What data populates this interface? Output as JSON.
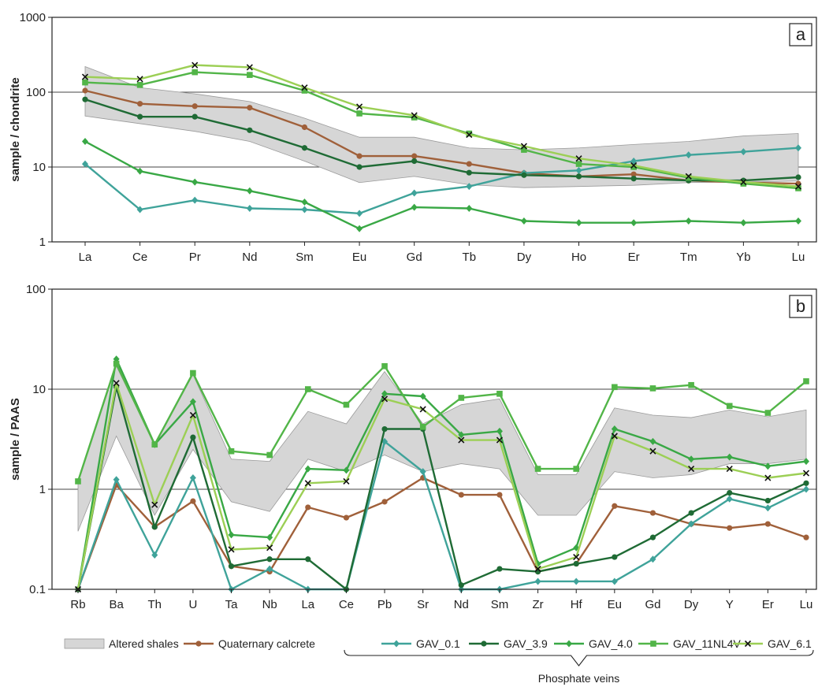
{
  "chart_data": [
    {
      "panel": "a",
      "type": "line",
      "ylabel": "sample / chondrite",
      "yscale": "log",
      "ylim": [
        1,
        1000
      ],
      "yticks": [
        "1",
        "10",
        "100",
        "1000"
      ],
      "grid": "horizontal at 10 and 100",
      "categories": [
        "La",
        "Ce",
        "Pr",
        "Nd",
        "Sm",
        "Eu",
        "Gd",
        "Tb",
        "Dy",
        "Ho",
        "Er",
        "Tm",
        "Yb",
        "Lu"
      ],
      "band": {
        "name": "Altered shales",
        "upper": [
          220,
          115,
          95,
          75,
          45,
          25,
          25,
          18,
          17,
          18,
          20,
          22,
          26,
          28
        ],
        "lower": [
          48,
          38,
          30,
          22,
          12,
          6.2,
          7.5,
          5.8,
          5.3,
          5.5,
          5.7,
          6.2,
          6.3,
          6.5
        ]
      },
      "series": [
        {
          "name": "Quaternary calcrete",
          "values": [
            105,
            70,
            65,
            62,
            34,
            14,
            14,
            11,
            8.3,
            7.5,
            8.0,
            6.6,
            6.2,
            6.0
          ]
        },
        {
          "name": "GAV_0.1",
          "values": [
            11,
            2.7,
            3.6,
            2.8,
            2.7,
            2.4,
            4.5,
            5.5,
            8.3,
            9,
            12,
            14.5,
            16,
            18
          ]
        },
        {
          "name": "GAV_3.9",
          "values": [
            80,
            47,
            47,
            31,
            18,
            10,
            12,
            8.4,
            7.8,
            7.5,
            7.0,
            6.6,
            6.6,
            7.3
          ]
        },
        {
          "name": "GAV_4.0",
          "values": [
            22,
            8.8,
            6.3,
            4.8,
            3.4,
            1.5,
            2.9,
            2.8,
            1.9,
            1.8,
            1.8,
            1.9,
            1.8,
            1.9
          ]
        },
        {
          "name": "GAV_11NL4V",
          "values": [
            135,
            125,
            185,
            170,
            105,
            52,
            46,
            28,
            17,
            11,
            10,
            7.2,
            6.0,
            5.2
          ]
        },
        {
          "name": "GAV_6.1",
          "values": [
            160,
            150,
            230,
            215,
            115,
            64,
            49,
            27,
            19,
            13,
            10.5,
            7.5,
            6.3,
            5.5
          ]
        }
      ]
    },
    {
      "panel": "b",
      "type": "line",
      "ylabel": "sample / PAAS",
      "yscale": "log",
      "ylim": [
        0.1,
        100
      ],
      "yticks": [
        "0.1",
        "1",
        "10",
        "100"
      ],
      "grid": "horizontal at 1 and 10",
      "categories": [
        "Rb",
        "Ba",
        "Th",
        "U",
        "Ta",
        "Nb",
        "La",
        "Ce",
        "Pb",
        "Sr",
        "Nd",
        "Sm",
        "Zr",
        "Hf",
        "Eu",
        "Gd",
        "Dy",
        "Y",
        "Er",
        "Lu"
      ],
      "band": {
        "name": "Altered shales",
        "upper": [
          1.2,
          17,
          2.8,
          14,
          2.0,
          1.9,
          6.0,
          4.5,
          15,
          4.5,
          7.0,
          8.0,
          1.4,
          1.4,
          6.5,
          5.5,
          5.2,
          6.2,
          5.3,
          6.2
        ],
        "lower": [
          0.38,
          3.4,
          0.55,
          2.5,
          0.75,
          0.6,
          2.0,
          1.5,
          2.2,
          1.5,
          1.8,
          1.6,
          0.55,
          0.55,
          1.5,
          1.3,
          1.4,
          1.8,
          1.8,
          2.0
        ]
      },
      "series": [
        {
          "name": "Quaternary calcrete",
          "values": [
            0.1,
            1.1,
            0.42,
            0.76,
            0.17,
            0.15,
            0.66,
            0.52,
            0.75,
            1.3,
            0.88,
            0.88,
            0.15,
            0.18,
            0.68,
            0.58,
            0.45,
            0.41,
            0.45,
            0.33
          ]
        },
        {
          "name": "GAV_0.1",
          "values": [
            0.1,
            1.25,
            0.22,
            1.3,
            0.1,
            0.16,
            0.1,
            0.1,
            3.0,
            1.5,
            0.1,
            0.1,
            0.12,
            0.12,
            0.12,
            0.2,
            0.45,
            0.8,
            0.65,
            1.0
          ]
        },
        {
          "name": "GAV_3.9",
          "values": [
            0.1,
            10.5,
            0.42,
            3.3,
            0.17,
            0.2,
            0.2,
            0.1,
            4.0,
            4.0,
            0.11,
            0.16,
            0.15,
            0.18,
            0.21,
            0.33,
            0.58,
            0.92,
            0.77,
            1.15
          ]
        },
        {
          "name": "GAV_4.0",
          "values": [
            0.1,
            20,
            2.8,
            7.5,
            0.35,
            0.33,
            1.6,
            1.55,
            9.0,
            8.5,
            3.5,
            3.8,
            0.18,
            0.26,
            4.0,
            3.0,
            2.0,
            2.1,
            1.7,
            1.9
          ]
        },
        {
          "name": "GAV_11NL4V",
          "values": [
            1.2,
            18,
            2.8,
            14.5,
            2.4,
            2.2,
            10,
            7.0,
            17,
            4.2,
            8.2,
            9.0,
            1.6,
            1.6,
            10.5,
            10.2,
            11,
            6.8,
            5.8,
            12
          ]
        },
        {
          "name": "GAV_6.1",
          "values": [
            0.1,
            11.5,
            0.7,
            5.5,
            0.25,
            0.26,
            1.15,
            1.2,
            8.0,
            6.3,
            3.1,
            3.1,
            0.16,
            0.21,
            3.4,
            2.4,
            1.6,
            1.6,
            1.3,
            1.45
          ]
        }
      ]
    }
  ],
  "legend": {
    "items": [
      {
        "label": "Altered shales",
        "kind": "band",
        "color": "#d6d6d6"
      },
      {
        "label": "Quaternary calcrete",
        "kind": "line",
        "marker": "circle",
        "color": "#a0603a"
      },
      {
        "label": "GAV_0.1",
        "kind": "line",
        "marker": "diamond",
        "color": "#3fa39a"
      },
      {
        "label": "GAV_3.9",
        "kind": "line",
        "marker": "circle",
        "color": "#1f6b35"
      },
      {
        "label": "GAV_4.0",
        "kind": "line",
        "marker": "diamond",
        "color": "#39a845"
      },
      {
        "label": "GAV_11NL4V",
        "kind": "line",
        "marker": "square",
        "color": "#52b548"
      },
      {
        "label": "GAV_6.1",
        "kind": "line",
        "marker": "x",
        "color": "#9ccf55"
      }
    ],
    "group_label": "Phosphate veins"
  },
  "colors": {
    "band_fill": "#d6d6d6",
    "band_stroke": "#9a9a9a",
    "grid": "#444444",
    "axis": "#222222"
  }
}
